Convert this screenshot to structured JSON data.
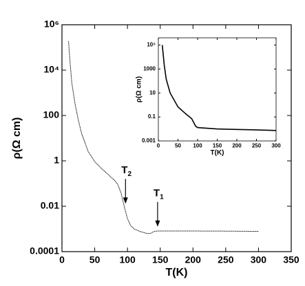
{
  "chart_data": [
    {
      "type": "line",
      "xlabel": "T(K)",
      "ylabel": "ρ(Ω cm)",
      "color": "#000000",
      "log_y": true,
      "x": [
        10,
        12,
        15,
        20,
        25,
        30,
        40,
        50,
        60,
        70,
        80,
        85,
        90,
        95,
        100,
        105,
        110,
        120,
        130,
        135,
        140,
        145,
        150,
        200,
        250,
        300
      ],
      "values": [
        190000,
        30000,
        2800,
        320,
        63,
        16,
        2.6,
        0.93,
        0.47,
        0.26,
        0.14,
        0.093,
        0.04,
        0.01,
        0.0028,
        0.0014,
        0.001,
        0.00076,
        0.00063,
        0.00063,
        0.00076,
        0.00081,
        0.00081,
        0.00081,
        0.0008,
        0.00078
      ],
      "xlim": [
        0,
        350
      ],
      "xticks": [
        0,
        50,
        100,
        150,
        200,
        250,
        300,
        350
      ],
      "ylim": [
        0.0001,
        1000000
      ],
      "yticks": [
        0.0001,
        0.01,
        1,
        100,
        {
          "value": 10000,
          "label": "10⁴"
        },
        {
          "value": 1000000,
          "label": "10⁶"
        }
      ],
      "annotations": [
        {
          "text": "T",
          "subscript": "2",
          "x": 97,
          "y": 0.013
        },
        {
          "text": "T",
          "subscript": "1",
          "x": 146,
          "y": 0.00126
        }
      ]
    },
    {
      "type": "line",
      "xlabel": "T(K)",
      "ylabel": "ρ(Ω cm)",
      "color": "#000000",
      "log_y": true,
      "x": [
        10,
        15,
        20,
        30,
        50,
        70,
        85,
        95,
        100,
        150,
        200,
        250,
        300
      ],
      "values": [
        100000,
        2100,
        145,
        10,
        0.69,
        0.18,
        0.072,
        0.017,
        0.013,
        0.01,
        0.0091,
        0.0083,
        0.0074
      ],
      "xlim": [
        0,
        300
      ],
      "xticks": [
        0,
        50,
        100,
        150,
        200,
        250,
        300
      ],
      "ylim": [
        0.001,
        400000
      ],
      "yticks": [
        0.001,
        0.1,
        10,
        1000,
        {
          "value": 100000,
          "label": "10⁵"
        }
      ]
    }
  ]
}
